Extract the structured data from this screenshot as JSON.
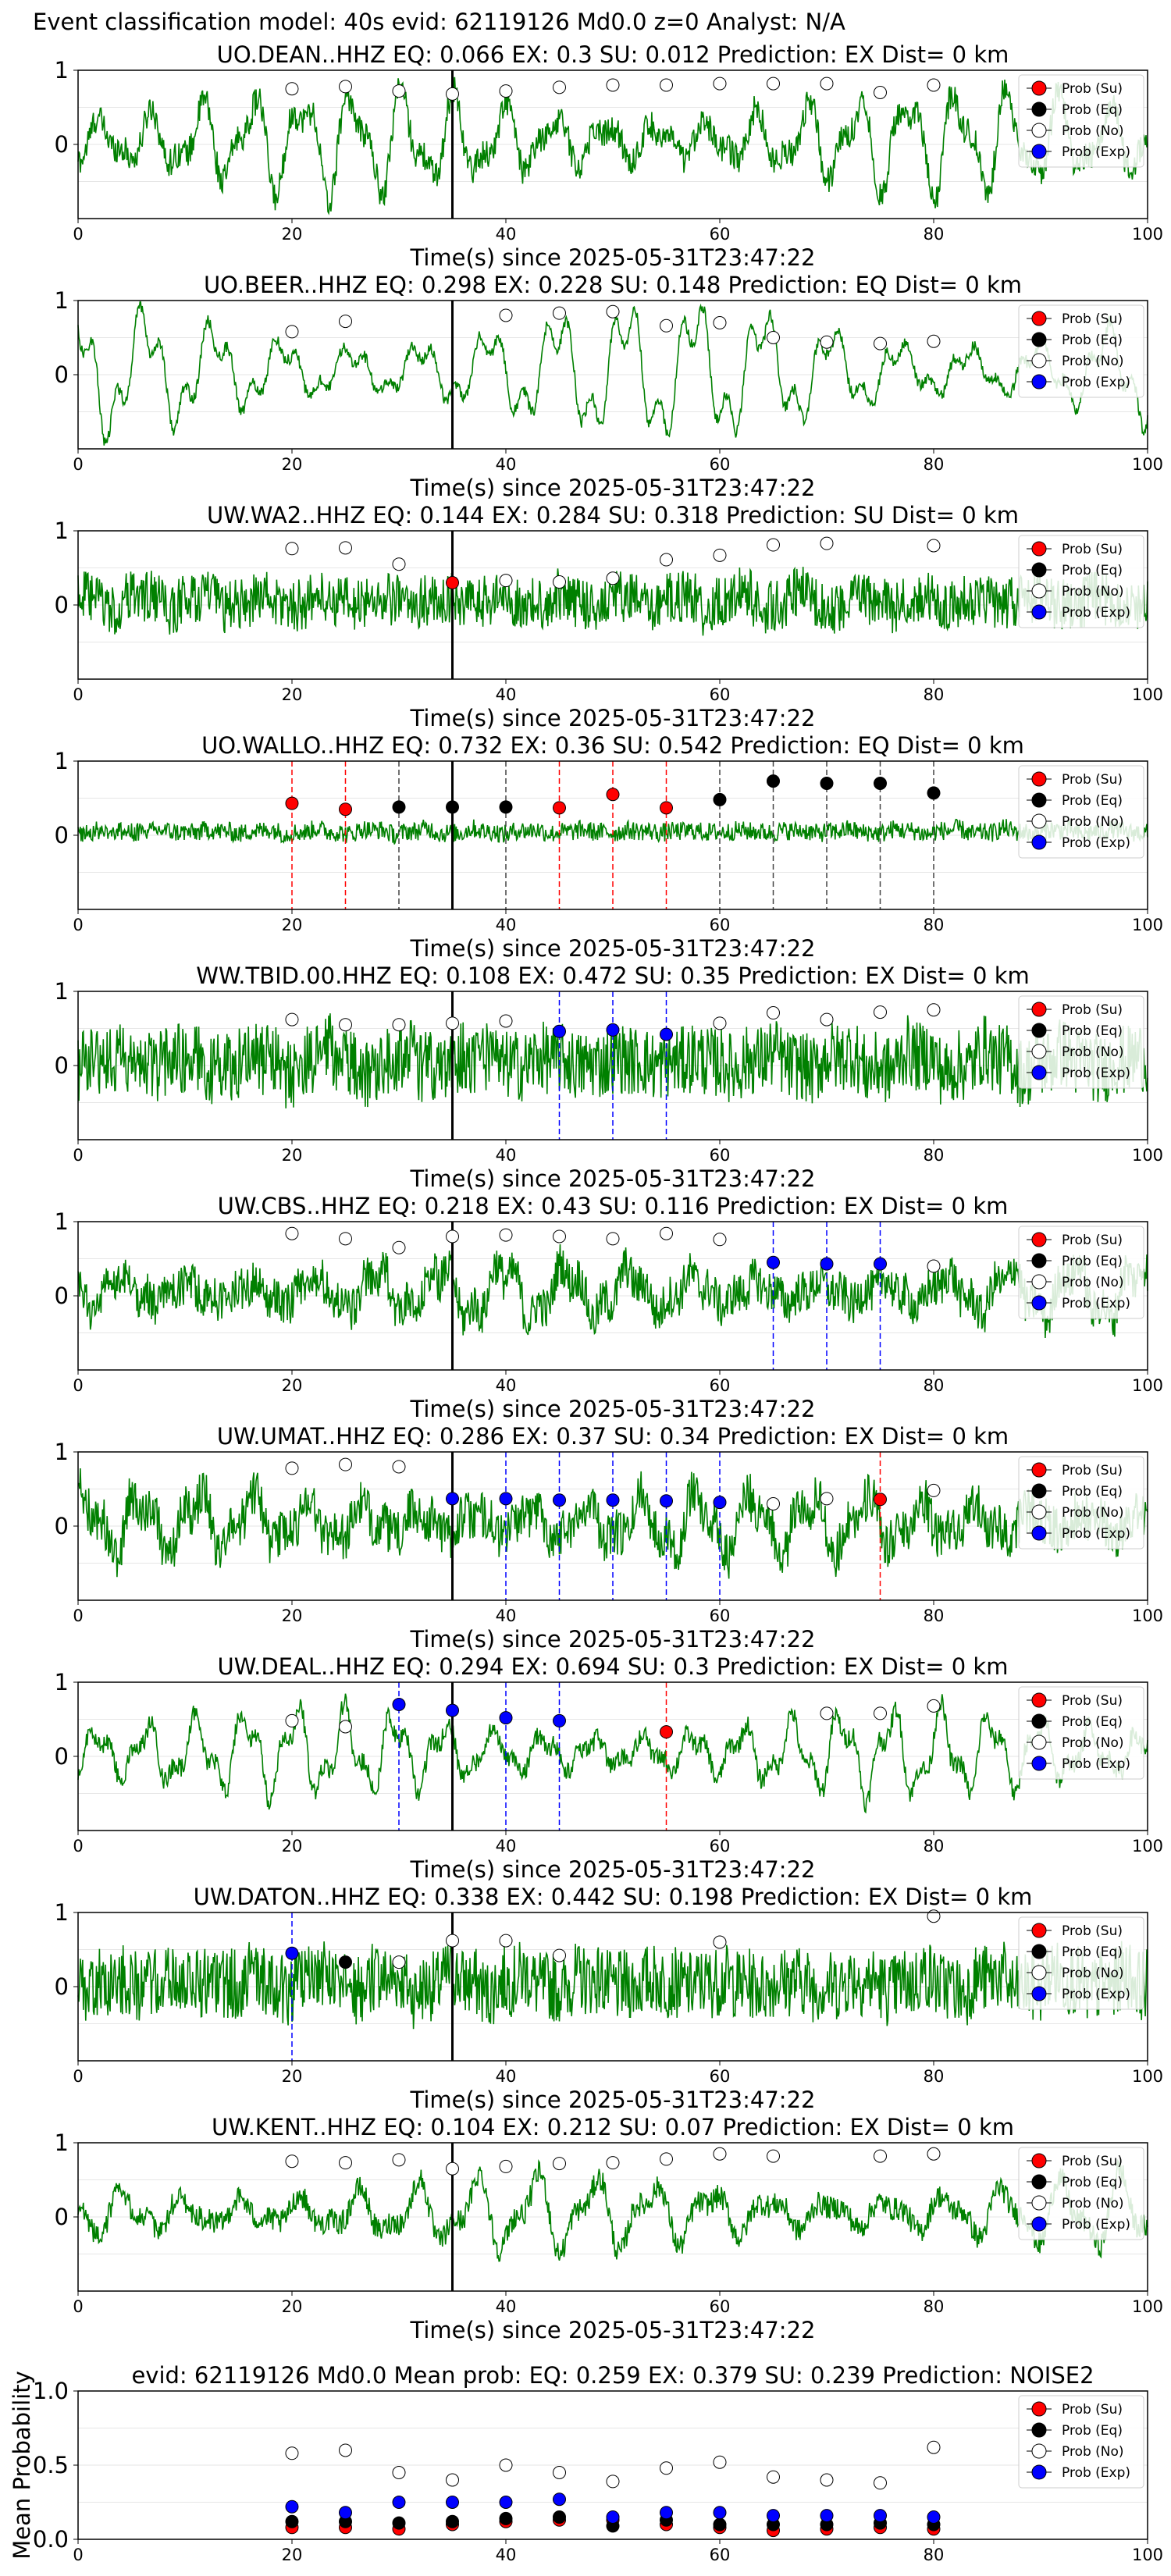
{
  "figure_title": "Event classification model: 40s evid: 62119126 Md0.0 z=0 Analyst: N/A",
  "legend": {
    "su": "Prob (Su)",
    "eq": "Prob (Eq)",
    "no": "Prob (No)",
    "exp": "Prob (Exp)"
  },
  "colors": {
    "su": "#ff0000",
    "eq": "#000000",
    "no": "#ffffff",
    "exp": "#0000ff",
    "trace": "#008000",
    "arrival": "#000000"
  },
  "chart_data": [
    {
      "type": "line",
      "station": "UO.DEAN..HHZ",
      "title": "UO.DEAN..HHZ    EQ: 0.066  EX: 0.3  SU: 0.012   Prediction: EX    Dist= 0 km",
      "xlabel": "Time(s) since 2025-05-31T23:47:22",
      "xlim": [
        0,
        100
      ],
      "ylim": [
        -1,
        1
      ],
      "xticks": [
        0,
        20,
        40,
        60,
        80,
        100
      ],
      "yticks": [
        0,
        1
      ],
      "arrival_x": 35,
      "grid": true,
      "legend_placement": "upper-right",
      "noise_level": 0.12,
      "wave_amp": 0.55,
      "points": [
        {
          "t": 20,
          "p": 0.75,
          "c": "no"
        },
        {
          "t": 25,
          "p": 0.78,
          "c": "no"
        },
        {
          "t": 30,
          "p": 0.72,
          "c": "no"
        },
        {
          "t": 35,
          "p": 0.68,
          "c": "no"
        },
        {
          "t": 40,
          "p": 0.72,
          "c": "no"
        },
        {
          "t": 45,
          "p": 0.77,
          "c": "no"
        },
        {
          "t": 50,
          "p": 0.8,
          "c": "no"
        },
        {
          "t": 55,
          "p": 0.8,
          "c": "no"
        },
        {
          "t": 60,
          "p": 0.82,
          "c": "no"
        },
        {
          "t": 65,
          "p": 0.82,
          "c": "no"
        },
        {
          "t": 70,
          "p": 0.82,
          "c": "no"
        },
        {
          "t": 75,
          "p": 0.7,
          "c": "no"
        },
        {
          "t": 80,
          "p": 0.8,
          "c": "no"
        }
      ]
    },
    {
      "type": "line",
      "station": "UO.BEER..HHZ",
      "title": "UO.BEER..HHZ   EQ: 0.298  EX: 0.228  SU: 0.148   Prediction: EQ    Dist= 0 km",
      "xlabel": "Time(s) since 2025-05-31T23:47:22",
      "xlim": [
        0,
        100
      ],
      "ylim": [
        -1,
        1
      ],
      "xticks": [
        0,
        20,
        40,
        60,
        80,
        100
      ],
      "yticks": [
        0,
        1
      ],
      "arrival_x": 35,
      "grid": true,
      "legend_placement": "upper-right",
      "noise_level": 0.05,
      "wave_amp": 0.7,
      "points": [
        {
          "t": 20,
          "p": 0.58,
          "c": "no"
        },
        {
          "t": 25,
          "p": 0.72,
          "c": "no"
        },
        {
          "t": 40,
          "p": 0.8,
          "c": "no"
        },
        {
          "t": 45,
          "p": 0.83,
          "c": "no"
        },
        {
          "t": 50,
          "p": 0.85,
          "c": "no"
        },
        {
          "t": 55,
          "p": 0.66,
          "c": "no"
        },
        {
          "t": 60,
          "p": 0.7,
          "c": "no"
        },
        {
          "t": 65,
          "p": 0.5,
          "c": "no"
        },
        {
          "t": 70,
          "p": 0.44,
          "c": "no"
        },
        {
          "t": 75,
          "p": 0.42,
          "c": "no"
        },
        {
          "t": 80,
          "p": 0.45,
          "c": "no"
        }
      ]
    },
    {
      "type": "line",
      "station": "UW.WA2..HHZ",
      "title": "UW.WA2..HHZ   EQ: 0.144  EX: 0.284  SU: 0.318   Prediction: SU    Dist= 0 km",
      "xlabel": "Time(s) since 2025-05-31T23:47:22",
      "xlim": [
        0,
        100
      ],
      "ylim": [
        -1,
        1
      ],
      "xticks": [
        0,
        20,
        40,
        60,
        80,
        100
      ],
      "yticks": [
        0,
        1
      ],
      "arrival_x": 35,
      "grid": true,
      "legend_placement": "upper-right",
      "noise_level": 0.22,
      "wave_amp": 0.1,
      "points": [
        {
          "t": 20,
          "p": 0.76,
          "c": "no"
        },
        {
          "t": 25,
          "p": 0.77,
          "c": "no"
        },
        {
          "t": 30,
          "p": 0.55,
          "c": "no"
        },
        {
          "t": 35,
          "p": 0.3,
          "c": "su"
        },
        {
          "t": 40,
          "p": 0.33,
          "c": "no"
        },
        {
          "t": 45,
          "p": 0.31,
          "c": "no"
        },
        {
          "t": 50,
          "p": 0.36,
          "c": "no"
        },
        {
          "t": 55,
          "p": 0.61,
          "c": "no"
        },
        {
          "t": 60,
          "p": 0.67,
          "c": "no"
        },
        {
          "t": 65,
          "p": 0.81,
          "c": "no"
        },
        {
          "t": 70,
          "p": 0.83,
          "c": "no"
        },
        {
          "t": 80,
          "p": 0.8,
          "c": "no"
        }
      ]
    },
    {
      "type": "line",
      "station": "UO.WALLO..HHZ",
      "title": "UO.WALLO..HHZ   EQ: 0.732  EX: 0.36  SU: 0.542   Prediction: EQ    Dist= 0 km",
      "xlabel": "Time(s) since 2025-05-31T23:47:22",
      "xlim": [
        0,
        100
      ],
      "ylim": [
        -1,
        1
      ],
      "xticks": [
        0,
        20,
        40,
        60,
        80,
        100
      ],
      "yticks": [
        0,
        1
      ],
      "arrival_x": 35,
      "grid": true,
      "legend_placement": "upper-right",
      "noise_level": 0.08,
      "wave_amp": 0.03,
      "points": [
        {
          "t": 20,
          "p": 0.43,
          "c": "su",
          "line": true
        },
        {
          "t": 25,
          "p": 0.35,
          "c": "su",
          "line": true
        },
        {
          "t": 30,
          "p": 0.38,
          "c": "eq",
          "line": true
        },
        {
          "t": 35,
          "p": 0.38,
          "c": "eq"
        },
        {
          "t": 40,
          "p": 0.38,
          "c": "eq",
          "line": true
        },
        {
          "t": 45,
          "p": 0.37,
          "c": "su",
          "line": true
        },
        {
          "t": 50,
          "p": 0.55,
          "c": "su",
          "line": true
        },
        {
          "t": 55,
          "p": 0.37,
          "c": "su",
          "line": true
        },
        {
          "t": 60,
          "p": 0.48,
          "c": "eq",
          "line": true
        },
        {
          "t": 65,
          "p": 0.73,
          "c": "eq",
          "line": true
        },
        {
          "t": 70,
          "p": 0.7,
          "c": "eq",
          "line": true
        },
        {
          "t": 75,
          "p": 0.7,
          "c": "eq",
          "line": true
        },
        {
          "t": 80,
          "p": 0.57,
          "c": "eq",
          "line": true
        }
      ]
    },
    {
      "type": "line",
      "station": "WW.TBID.00.HHZ",
      "title": "WW.TBID.00.HHZ   EQ: 0.108  EX: 0.472  SU: 0.35   Prediction: EX    Dist= 0 km",
      "xlabel": "Time(s) since 2025-05-31T23:47:22",
      "xlim": [
        0,
        100
      ],
      "ylim": [
        -1,
        1
      ],
      "xticks": [
        0,
        20,
        40,
        60,
        80,
        100
      ],
      "yticks": [
        0,
        1
      ],
      "arrival_x": 35,
      "grid": true,
      "legend_placement": "upper-right",
      "noise_level": 0.3,
      "wave_amp": 0.12,
      "points": [
        {
          "t": 20,
          "p": 0.62,
          "c": "no"
        },
        {
          "t": 25,
          "p": 0.55,
          "c": "no"
        },
        {
          "t": 30,
          "p": 0.55,
          "c": "no"
        },
        {
          "t": 35,
          "p": 0.57,
          "c": "no"
        },
        {
          "t": 40,
          "p": 0.6,
          "c": "no"
        },
        {
          "t": 45,
          "p": 0.46,
          "c": "exp",
          "line": true
        },
        {
          "t": 50,
          "p": 0.48,
          "c": "exp",
          "line": true
        },
        {
          "t": 55,
          "p": 0.42,
          "c": "exp",
          "line": true
        },
        {
          "t": 60,
          "p": 0.57,
          "c": "no"
        },
        {
          "t": 65,
          "p": 0.71,
          "c": "no"
        },
        {
          "t": 70,
          "p": 0.62,
          "c": "no"
        },
        {
          "t": 75,
          "p": 0.72,
          "c": "no"
        },
        {
          "t": 80,
          "p": 0.75,
          "c": "no"
        }
      ]
    },
    {
      "type": "line",
      "station": "UW.CBS..HHZ",
      "title": "UW.CBS..HHZ   EQ: 0.218  EX: 0.43  SU: 0.116   Prediction: EX    Dist= 0 km",
      "xlabel": "Time(s) since 2025-05-31T23:47:22",
      "xlim": [
        0,
        100
      ],
      "ylim": [
        -1,
        1
      ],
      "xticks": [
        0,
        20,
        40,
        60,
        80,
        100
      ],
      "yticks": [
        0,
        1
      ],
      "arrival_x": 35,
      "grid": true,
      "legend_placement": "upper-right",
      "noise_level": 0.18,
      "wave_amp": 0.3,
      "points": [
        {
          "t": 20,
          "p": 0.84,
          "c": "no"
        },
        {
          "t": 25,
          "p": 0.77,
          "c": "no"
        },
        {
          "t": 30,
          "p": 0.65,
          "c": "no"
        },
        {
          "t": 35,
          "p": 0.8,
          "c": "no"
        },
        {
          "t": 40,
          "p": 0.82,
          "c": "no"
        },
        {
          "t": 45,
          "p": 0.8,
          "c": "no"
        },
        {
          "t": 50,
          "p": 0.77,
          "c": "no"
        },
        {
          "t": 55,
          "p": 0.84,
          "c": "no"
        },
        {
          "t": 60,
          "p": 0.76,
          "c": "no"
        },
        {
          "t": 65,
          "p": 0.45,
          "c": "exp",
          "line": true
        },
        {
          "t": 70,
          "p": 0.43,
          "c": "exp",
          "line": true
        },
        {
          "t": 75,
          "p": 0.43,
          "c": "exp",
          "line": true
        },
        {
          "t": 80,
          "p": 0.4,
          "c": "no"
        }
      ]
    },
    {
      "type": "line",
      "station": "UW.UMAT..HHZ",
      "title": "UW.UMAT..HHZ   EQ: 0.286  EX: 0.37  SU: 0.34   Prediction: EX    Dist= 0 km",
      "xlabel": "Time(s) since 2025-05-31T23:47:22",
      "xlim": [
        0,
        100
      ],
      "ylim": [
        -1,
        1
      ],
      "xticks": [
        0,
        20,
        40,
        60,
        80,
        100
      ],
      "yticks": [
        0,
        1
      ],
      "arrival_x": 35,
      "grid": true,
      "legend_placement": "upper-right",
      "noise_level": 0.2,
      "wave_amp": 0.35,
      "points": [
        {
          "t": 20,
          "p": 0.78,
          "c": "no"
        },
        {
          "t": 25,
          "p": 0.83,
          "c": "no"
        },
        {
          "t": 30,
          "p": 0.8,
          "c": "no"
        },
        {
          "t": 35,
          "p": 0.37,
          "c": "exp"
        },
        {
          "t": 40,
          "p": 0.37,
          "c": "exp",
          "line": true
        },
        {
          "t": 45,
          "p": 0.35,
          "c": "exp",
          "line": true
        },
        {
          "t": 50,
          "p": 0.35,
          "c": "exp",
          "line": true
        },
        {
          "t": 55,
          "p": 0.34,
          "c": "exp",
          "line": true
        },
        {
          "t": 60,
          "p": 0.32,
          "c": "exp",
          "line": true
        },
        {
          "t": 65,
          "p": 0.3,
          "c": "no"
        },
        {
          "t": 70,
          "p": 0.37,
          "c": "no"
        },
        {
          "t": 75,
          "p": 0.36,
          "c": "su",
          "line": true
        },
        {
          "t": 80,
          "p": 0.48,
          "c": "no"
        }
      ]
    },
    {
      "type": "line",
      "station": "UW.DEAL..HHZ",
      "title": "UW.DEAL..HHZ   EQ: 0.294  EX: 0.694  SU: 0.3   Prediction: EX    Dist= 0 km",
      "xlabel": "Time(s) since 2025-05-31T23:47:22",
      "xlim": [
        0,
        100
      ],
      "ylim": [
        -1,
        1
      ],
      "xticks": [
        0,
        20,
        40,
        60,
        80,
        100
      ],
      "yticks": [
        0,
        1
      ],
      "arrival_x": 35,
      "grid": true,
      "legend_placement": "upper-right",
      "noise_level": 0.08,
      "wave_amp": 0.45,
      "points": [
        {
          "t": 20,
          "p": 0.48,
          "c": "no"
        },
        {
          "t": 25,
          "p": 0.4,
          "c": "no"
        },
        {
          "t": 30,
          "p": 0.7,
          "c": "exp",
          "line": true
        },
        {
          "t": 35,
          "p": 0.62,
          "c": "exp"
        },
        {
          "t": 40,
          "p": 0.52,
          "c": "exp",
          "line": true
        },
        {
          "t": 45,
          "p": 0.48,
          "c": "exp",
          "line": true
        },
        {
          "t": 55,
          "p": 0.33,
          "c": "su",
          "line": true
        },
        {
          "t": 70,
          "p": 0.58,
          "c": "no"
        },
        {
          "t": 75,
          "p": 0.58,
          "c": "no"
        },
        {
          "t": 80,
          "p": 0.68,
          "c": "no"
        }
      ]
    },
    {
      "type": "line",
      "station": "UW.DATON..HHZ",
      "title": "UW.DATON..HHZ   EQ: 0.338  EX: 0.442  SU: 0.198   Prediction: EX    Dist= 0 km",
      "xlabel": "Time(s) since 2025-05-31T23:47:22",
      "xlim": [
        0,
        100
      ],
      "ylim": [
        -1,
        1
      ],
      "xticks": [
        0,
        20,
        40,
        60,
        80,
        100
      ],
      "yticks": [
        0,
        1
      ],
      "arrival_x": 35,
      "grid": true,
      "legend_placement": "upper-right",
      "noise_level": 0.3,
      "wave_amp": 0.1,
      "points": [
        {
          "t": 20,
          "p": 0.45,
          "c": "exp",
          "line": true
        },
        {
          "t": 25,
          "p": 0.33,
          "c": "eq"
        },
        {
          "t": 30,
          "p": 0.33,
          "c": "no"
        },
        {
          "t": 35,
          "p": 0.62,
          "c": "no"
        },
        {
          "t": 40,
          "p": 0.62,
          "c": "no"
        },
        {
          "t": 45,
          "p": 0.42,
          "c": "no"
        },
        {
          "t": 60,
          "p": 0.6,
          "c": "no"
        },
        {
          "t": 80,
          "p": 0.95,
          "c": "no"
        }
      ]
    },
    {
      "type": "line",
      "station": "UW.KENT..HHZ",
      "title": "UW.KENT..HHZ   EQ: 0.104  EX: 0.212  SU: 0.07   Prediction: EX    Dist= 0 km",
      "xlabel": "Time(s) since 2025-05-31T23:47:22",
      "xlim": [
        0,
        100
      ],
      "ylim": [
        -1,
        1
      ],
      "xticks": [
        0,
        20,
        40,
        60,
        80,
        100
      ],
      "yticks": [
        0,
        1
      ],
      "arrival_x": 35,
      "grid": true,
      "legend_placement": "upper-right",
      "noise_level": 0.1,
      "wave_amp": 0.4,
      "points": [
        {
          "t": 20,
          "p": 0.75,
          "c": "no"
        },
        {
          "t": 25,
          "p": 0.73,
          "c": "no"
        },
        {
          "t": 30,
          "p": 0.77,
          "c": "no"
        },
        {
          "t": 35,
          "p": 0.65,
          "c": "no"
        },
        {
          "t": 40,
          "p": 0.68,
          "c": "no"
        },
        {
          "t": 45,
          "p": 0.72,
          "c": "no"
        },
        {
          "t": 50,
          "p": 0.73,
          "c": "no"
        },
        {
          "t": 55,
          "p": 0.78,
          "c": "no"
        },
        {
          "t": 60,
          "p": 0.85,
          "c": "no"
        },
        {
          "t": 65,
          "p": 0.82,
          "c": "no"
        },
        {
          "t": 75,
          "p": 0.82,
          "c": "no"
        },
        {
          "t": 80,
          "p": 0.85,
          "c": "no"
        }
      ]
    },
    {
      "type": "scatter",
      "title": "evid: 62119126   Md0.0   Mean prob:   EQ: 0.259  EX: 0.379  SU: 0.239   Prediction: NOISE2",
      "ylabel": "Mean Probability",
      "xlim": [
        0,
        100
      ],
      "ylim": [
        0,
        1
      ],
      "xticks": [
        0,
        20,
        40,
        60,
        80,
        100
      ],
      "yticks": [
        0.0,
        0.5,
        1.0
      ],
      "grid": true,
      "legend_placement": "upper-right",
      "x": [
        20,
        25,
        30,
        35,
        40,
        45,
        50,
        55,
        60,
        65,
        70,
        75,
        80
      ],
      "series": [
        {
          "name": "Prob (Su)",
          "key": "su",
          "values": [
            0.08,
            0.08,
            0.07,
            0.1,
            0.12,
            0.13,
            0.13,
            0.1,
            0.08,
            0.06,
            0.07,
            0.08,
            0.07
          ]
        },
        {
          "name": "Prob (Eq)",
          "key": "eq",
          "values": [
            0.12,
            0.12,
            0.11,
            0.12,
            0.14,
            0.15,
            0.09,
            0.13,
            0.1,
            0.1,
            0.1,
            0.11,
            0.1
          ]
        },
        {
          "name": "Prob (No)",
          "key": "no",
          "values": [
            0.58,
            0.6,
            0.45,
            0.4,
            0.5,
            0.45,
            0.39,
            0.48,
            0.52,
            0.42,
            0.4,
            0.38,
            0.62
          ]
        },
        {
          "name": "Prob (Exp)",
          "key": "exp",
          "values": [
            0.22,
            0.18,
            0.25,
            0.25,
            0.25,
            0.27,
            0.15,
            0.18,
            0.18,
            0.16,
            0.16,
            0.16,
            0.15
          ]
        }
      ]
    }
  ]
}
